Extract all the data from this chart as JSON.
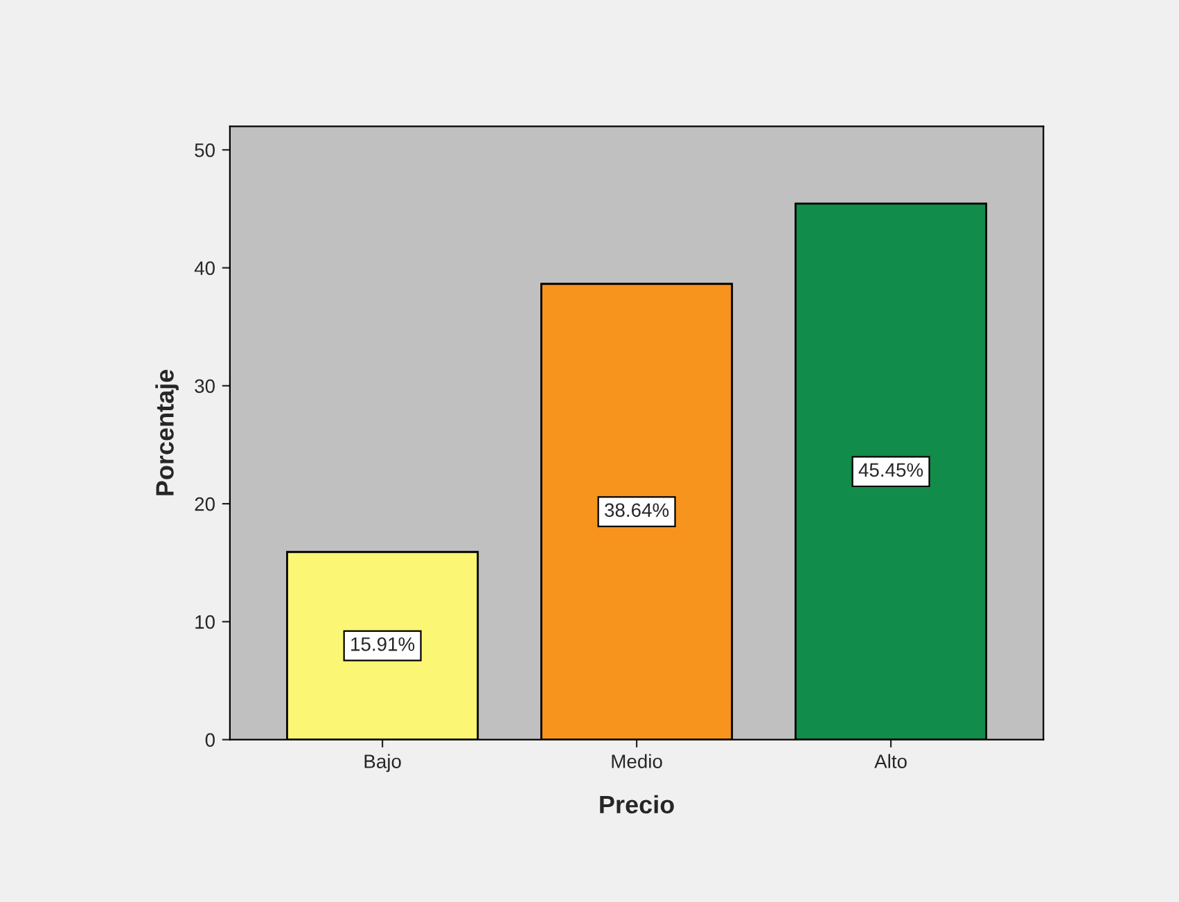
{
  "chart_data": {
    "type": "bar",
    "xlabel": "Precio",
    "ylabel": "Porcentaje",
    "categories": [
      "Bajo",
      "Medio",
      "Alto"
    ],
    "values": [
      15.91,
      38.64,
      45.45
    ],
    "colors": [
      "#fbf673",
      "#f7941d",
      "#128c4a"
    ],
    "value_labels": [
      "15.91%",
      "38.64%",
      "45.45%"
    ],
    "ylim": [
      0,
      52
    ],
    "yticks": [
      0,
      10,
      20,
      30,
      40,
      50
    ],
    "grid": false
  }
}
